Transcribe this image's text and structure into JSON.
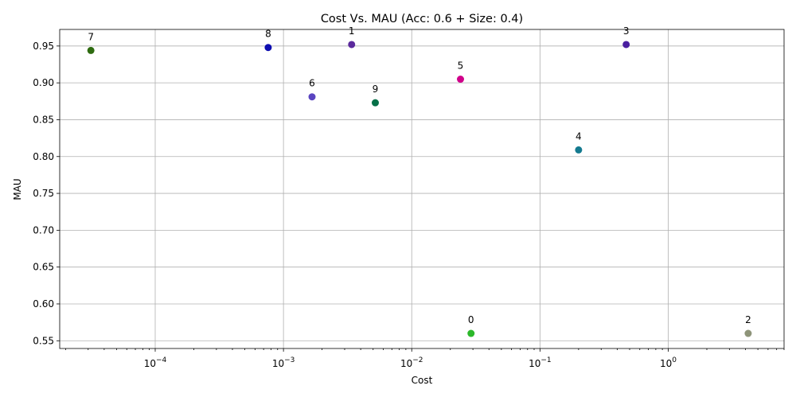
{
  "chart_data": {
    "type": "scatter",
    "title": "Cost Vs. MAU (Acc: 0.6 + Size: 0.4)",
    "xlabel": "Cost",
    "ylabel": "MAU",
    "xscale": "log",
    "xlim": [
      1.8e-05,
      8.0
    ],
    "ylim": [
      0.5395,
      0.9725
    ],
    "grid": true,
    "x_ticks": [
      {
        "value": 0.0001,
        "base": "10",
        "exp": "−4"
      },
      {
        "value": 0.001,
        "base": "10",
        "exp": "−3"
      },
      {
        "value": 0.01,
        "base": "10",
        "exp": "−2"
      },
      {
        "value": 0.1,
        "base": "10",
        "exp": "−1"
      },
      {
        "value": 1,
        "base": "10",
        "exp": "0"
      }
    ],
    "y_ticks": [
      "0.55",
      "0.60",
      "0.65",
      "0.70",
      "0.75",
      "0.80",
      "0.85",
      "0.90",
      "0.95"
    ],
    "points": [
      {
        "label": "0",
        "x": 0.029,
        "y": 0.56,
        "color": "#2cb82a"
      },
      {
        "label": "1",
        "x": 0.0034,
        "y": 0.952,
        "color": "#5b2a9c"
      },
      {
        "label": "2",
        "x": 4.2,
        "y": 0.56,
        "color": "#8e9479"
      },
      {
        "label": "3",
        "x": 0.47,
        "y": 0.952,
        "color": "#4a1fa0"
      },
      {
        "label": "4",
        "x": 0.2,
        "y": 0.809,
        "color": "#147a8f"
      },
      {
        "label": "5",
        "x": 0.024,
        "y": 0.905,
        "color": "#d0008a"
      },
      {
        "label": "6",
        "x": 0.00167,
        "y": 0.881,
        "color": "#5a45c0"
      },
      {
        "label": "7",
        "x": 3.15e-05,
        "y": 0.944,
        "color": "#2e6b10"
      },
      {
        "label": "8",
        "x": 0.00076,
        "y": 0.948,
        "color": "#0d0db0"
      },
      {
        "label": "9",
        "x": 0.0052,
        "y": 0.873,
        "color": "#067048"
      }
    ]
  }
}
